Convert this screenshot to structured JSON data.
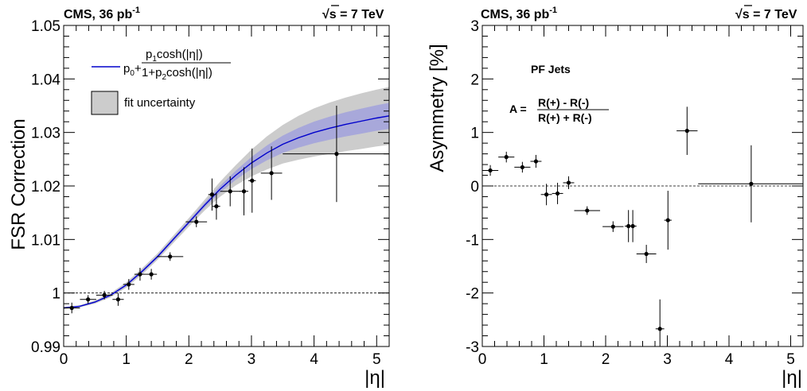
{
  "chart_data": [
    {
      "type": "scatter",
      "header_left": "CMS, 36 pb",
      "header_left_sup": "-1",
      "header_right_sqrt": "√",
      "header_right": "s = 7 TeV",
      "xlabel": "|η|",
      "ylabel": "FSR Correction",
      "xlim": [
        0,
        5.2
      ],
      "ylim": [
        0.99,
        1.05
      ],
      "xticks": [
        "0",
        "1",
        "2",
        "3",
        "4",
        "5"
      ],
      "xtick_values": [
        0,
        1,
        2,
        3,
        4,
        5
      ],
      "yticks": [
        "0.99",
        "1",
        "1.01",
        "1.02",
        "1.03",
        "1.04",
        "1.05"
      ],
      "ytick_values": [
        0.99,
        1.0,
        1.01,
        1.02,
        1.03,
        1.04,
        1.05
      ],
      "reference_line": 1.0,
      "colors": {
        "fit": "#0000cc",
        "band": "#cccccc",
        "fit_band": "#8a8ae6",
        "points": "#000000"
      },
      "legend": {
        "fit_p0": "p",
        "fit_p0_sub": "0",
        "fit_plus": "+",
        "fit_num_p": "p",
        "fit_num_sub": "1",
        "fit_num": "cosh(|η|)",
        "fit_den": "1+p",
        "fit_den_sub": "2",
        "fit_den_rest": "cosh(|η|)",
        "band_label": "fit uncertainty"
      },
      "points": [
        {
          "x": 0.13,
          "y": 0.9972,
          "xerr": 0.13,
          "yerr": 0.001
        },
        {
          "x": 0.39,
          "y": 0.9988,
          "xerr": 0.13,
          "yerr": 0.0008
        },
        {
          "x": 0.65,
          "y": 0.9996,
          "xerr": 0.13,
          "yerr": 0.0008
        },
        {
          "x": 0.87,
          "y": 0.9988,
          "xerr": 0.09,
          "yerr": 0.0012
        },
        {
          "x": 1.04,
          "y": 1.0016,
          "xerr": 0.09,
          "yerr": 0.001
        },
        {
          "x": 1.22,
          "y": 1.0035,
          "xerr": 0.09,
          "yerr": 0.0012
        },
        {
          "x": 1.4,
          "y": 1.0035,
          "xerr": 0.09,
          "yerr": 0.001
        },
        {
          "x": 1.7,
          "y": 1.0068,
          "xerr": 0.21,
          "yerr": 0.0008
        },
        {
          "x": 2.12,
          "y": 1.0133,
          "xerr": 0.17,
          "yerr": 0.001
        },
        {
          "x": 2.37,
          "y": 1.0184,
          "xerr": 0.06,
          "yerr": 0.003
        },
        {
          "x": 2.44,
          "y": 1.0162,
          "xerr": 0.06,
          "yerr": 0.0025
        },
        {
          "x": 2.66,
          "y": 1.019,
          "xerr": 0.16,
          "yerr": 0.0028
        },
        {
          "x": 2.88,
          "y": 1.019,
          "xerr": 0.07,
          "yerr": 0.0045
        },
        {
          "x": 3.01,
          "y": 1.021,
          "xerr": 0.06,
          "yerr": 0.006
        },
        {
          "x": 3.32,
          "y": 1.0224,
          "xerr": 0.17,
          "yerr": 0.005
        },
        {
          "x": 4.36,
          "y": 1.026,
          "xerr": 0.86,
          "yerr": 0.009
        }
      ],
      "fit_curve": {
        "x": [
          0,
          0.25,
          0.5,
          0.75,
          1.0,
          1.25,
          1.5,
          1.75,
          2.0,
          2.25,
          2.5,
          2.75,
          3.0,
          3.25,
          3.5,
          3.75,
          4.0,
          4.25,
          4.5,
          4.75,
          5.0,
          5.2
        ],
        "y": [
          0.9972,
          0.9975,
          0.9983,
          0.9996,
          1.0015,
          1.004,
          1.0068,
          1.01,
          1.0132,
          1.0164,
          1.0194,
          1.022,
          1.0243,
          1.0262,
          1.0278,
          1.029,
          1.03,
          1.0308,
          1.0315,
          1.0321,
          1.0327,
          1.0331
        ],
        "err": [
          0.0002,
          0.0002,
          0.0003,
          0.0004,
          0.0005,
          0.0006,
          0.0006,
          0.0007,
          0.0008,
          0.001,
          0.0014,
          0.0019,
          0.0025,
          0.0031,
          0.0036,
          0.0041,
          0.0045,
          0.0048,
          0.005,
          0.0052,
          0.0053,
          0.0054
        ]
      }
    },
    {
      "type": "scatter",
      "header_left": "CMS, 36 pb",
      "header_left_sup": "-1",
      "header_right_sqrt": "√",
      "header_right": "s = 7 TeV",
      "xlabel": "|η|",
      "ylabel": "Asymmetry [%]",
      "xlim": [
        0,
        5.2
      ],
      "ylim": [
        -3,
        3
      ],
      "xticks": [
        "0",
        "1",
        "2",
        "3",
        "4",
        "5"
      ],
      "xtick_values": [
        0,
        1,
        2,
        3,
        4,
        5
      ],
      "yticks": [
        "-3",
        "-2",
        "-1",
        "0",
        "1",
        "2",
        "3"
      ],
      "ytick_values": [
        -3,
        -2,
        -1,
        0,
        1,
        2,
        3
      ],
      "reference_line": 0,
      "annotation_title": "PF Jets",
      "formula_lhs": "A =",
      "formula_num": "R(+) - R(-)",
      "formula_den": "R(+) + R(-)",
      "points": [
        {
          "x": 0.13,
          "y": 0.29,
          "xerr": 0.13,
          "yerr": 0.1
        },
        {
          "x": 0.39,
          "y": 0.54,
          "xerr": 0.13,
          "yerr": 0.1
        },
        {
          "x": 0.65,
          "y": 0.35,
          "xerr": 0.13,
          "yerr": 0.1
        },
        {
          "x": 0.87,
          "y": 0.46,
          "xerr": 0.09,
          "yerr": 0.12
        },
        {
          "x": 1.04,
          "y": -0.16,
          "xerr": 0.09,
          "yerr": 0.2
        },
        {
          "x": 1.22,
          "y": -0.14,
          "xerr": 0.09,
          "yerr": 0.2
        },
        {
          "x": 1.4,
          "y": 0.06,
          "xerr": 0.09,
          "yerr": 0.12
        },
        {
          "x": 1.7,
          "y": -0.46,
          "xerr": 0.21,
          "yerr": 0.08
        },
        {
          "x": 2.12,
          "y": -0.76,
          "xerr": 0.17,
          "yerr": 0.1
        },
        {
          "x": 2.37,
          "y": -0.75,
          "xerr": 0.06,
          "yerr": 0.3
        },
        {
          "x": 2.44,
          "y": -0.75,
          "xerr": 0.06,
          "yerr": 0.3
        },
        {
          "x": 2.66,
          "y": -1.27,
          "xerr": 0.16,
          "yerr": 0.17
        },
        {
          "x": 2.88,
          "y": -2.67,
          "xerr": 0.07,
          "yerr": 0.55
        },
        {
          "x": 3.01,
          "y": -0.64,
          "xerr": 0.06,
          "yerr": 0.55
        },
        {
          "x": 3.32,
          "y": 1.03,
          "xerr": 0.17,
          "yerr": 0.45
        },
        {
          "x": 4.36,
          "y": 0.04,
          "xerr": 0.86,
          "yerr": 0.72
        }
      ]
    }
  ]
}
